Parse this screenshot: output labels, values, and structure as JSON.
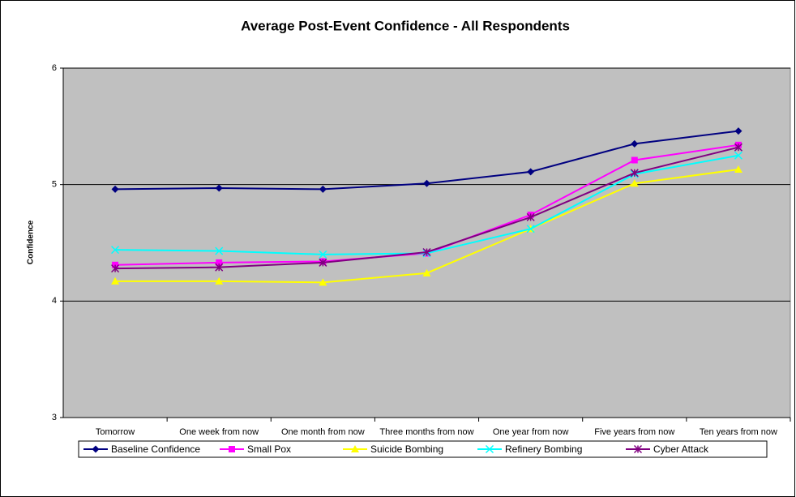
{
  "chart_data": {
    "type": "line",
    "title": "Average Post-Event Confidence - All Respondents",
    "y_label": "Confidence",
    "categories": [
      "Tomorrow",
      "One week from now",
      "One month from now",
      "Three months from now",
      "One year from now",
      "Five years from now",
      "Ten years from now"
    ],
    "series": [
      {
        "name": "Baseline Confidence",
        "color": "#000080",
        "marker": "diamond",
        "values": [
          4.96,
          4.97,
          4.96,
          5.01,
          5.11,
          5.35,
          5.46
        ]
      },
      {
        "name": "Small Pox",
        "color": "#ff00ff",
        "marker": "square",
        "values": [
          4.31,
          4.33,
          4.34,
          4.41,
          4.74,
          5.21,
          5.34
        ]
      },
      {
        "name": "Suicide Bombing",
        "color": "#ffff00",
        "marker": "triangle",
        "values": [
          4.17,
          4.17,
          4.16,
          4.24,
          4.62,
          5.01,
          5.13
        ]
      },
      {
        "name": "Refinery Bombing",
        "color": "#00ffff",
        "marker": "x",
        "values": [
          4.44,
          4.43,
          4.4,
          4.41,
          4.62,
          5.09,
          5.25
        ]
      },
      {
        "name": "Cyber Attack",
        "color": "#800080",
        "marker": "star",
        "values": [
          4.28,
          4.29,
          4.33,
          4.42,
          4.72,
          5.1,
          5.32
        ]
      }
    ],
    "ylim": [
      3,
      6
    ],
    "yticks": [
      3,
      4,
      5,
      6
    ],
    "grid": true,
    "legend": "bottom"
  }
}
